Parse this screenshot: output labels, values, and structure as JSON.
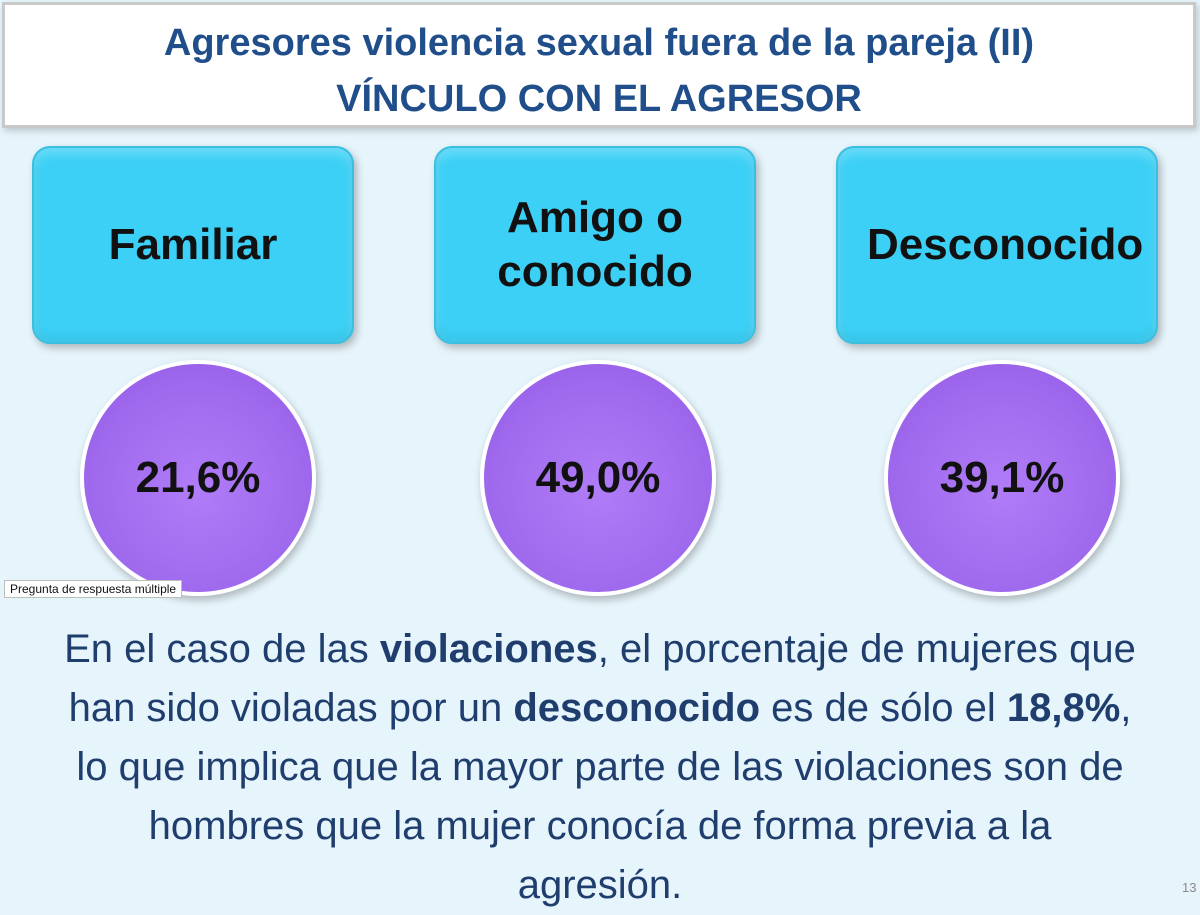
{
  "title": {
    "line1": "Agresores violencia sexual fuera de la pareja (II)",
    "line2": "VÍNCULO CON EL AGRESOR"
  },
  "categories": [
    {
      "label": "Familiar",
      "value": "21,6%"
    },
    {
      "label": "Amigo o conocido",
      "value": "49,0%"
    },
    {
      "label": "Desconocido",
      "value": "39,1%"
    }
  ],
  "note": "Pregunta de respuesta múltiple",
  "body": {
    "l1_a": "En el caso de las ",
    "l1_b": "violaciones",
    "l1_c": ", el porcentaje de mujeres que",
    "l2_a": "han sido violadas por un ",
    "l2_b": "desconocido",
    "l2_c": " es de sólo el ",
    "l2_d": "18,8%",
    "l2_e": ",",
    "l3": "lo que implica que la mayor parte de las violaciones son de",
    "l4": "hombres que la mujer conocía de forma previa a la",
    "l5": "agresión."
  },
  "page_number": "13",
  "colors": {
    "background": "#e6f4fb",
    "title_text": "#1f4e8a",
    "box_fill": "#3cd0f6",
    "circle_fill": "#a06aee",
    "body_text": "#1f3e6e"
  }
}
